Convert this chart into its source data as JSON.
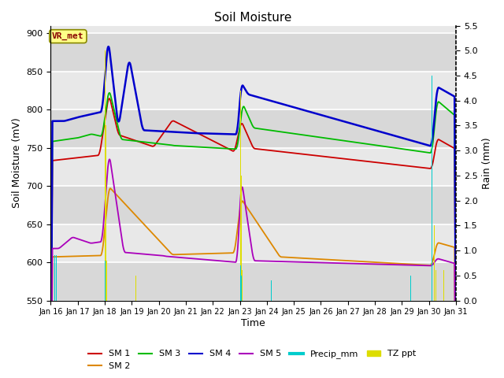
{
  "title": "Soil Moisture",
  "xlabel": "Time",
  "ylabel_left": "Soil Moisture (mV)",
  "ylabel_right": "Rain (mm)",
  "ylim_left": [
    550,
    910
  ],
  "ylim_right": [
    0.0,
    5.5
  ],
  "yticks_left": [
    550,
    600,
    650,
    700,
    750,
    800,
    850,
    900
  ],
  "yticks_right": [
    0.0,
    0.5,
    1.0,
    1.5,
    2.0,
    2.5,
    3.0,
    3.5,
    4.0,
    4.5,
    5.0,
    5.5
  ],
  "xtick_labels": [
    "Jan 16",
    "Jan 17",
    "Jan 18",
    "Jan 19",
    "Jan 20",
    "Jan 21",
    "Jan 22",
    "Jan 23",
    "Jan 24",
    "Jan 25",
    "Jan 26",
    "Jan 27",
    "Jan 28",
    "Jan 29",
    "Jan 30",
    "Jan 31"
  ],
  "colors": {
    "SM1": "#cc0000",
    "SM2": "#dd8800",
    "SM3": "#00bb00",
    "SM4": "#0000cc",
    "SM5": "#aa00bb",
    "Precip": "#00cccc",
    "TZ": "#dddd00"
  },
  "fig_bg": "#ffffff",
  "plot_bg": "#e8e8e8",
  "n_points": 1440
}
